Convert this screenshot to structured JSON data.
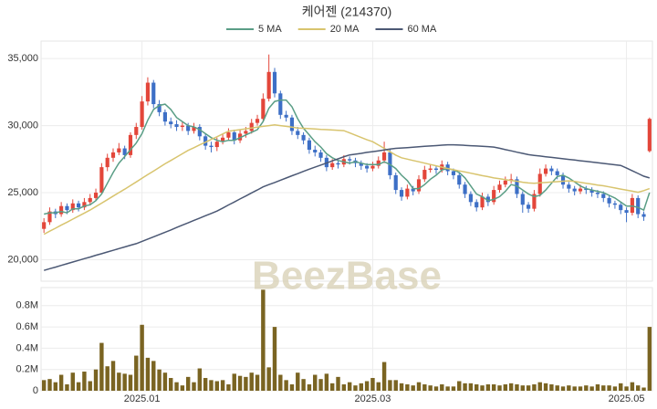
{
  "chart_data": {
    "type": "candlestick",
    "title": "케어젠 (214370)",
    "watermark": "BeezBase",
    "up_color": "#e3463a",
    "down_color": "#3d6fc6",
    "volume_color": "#7a6422",
    "grid": true,
    "categories": [
      null,
      null,
      null,
      null,
      null,
      null,
      null,
      null,
      null,
      null,
      null,
      null,
      null,
      null,
      null,
      null,
      null,
      "2025.01",
      null,
      null,
      null,
      null,
      null,
      null,
      null,
      null,
      null,
      null,
      null,
      null,
      null,
      null,
      null,
      null,
      null,
      null,
      null,
      null,
      null,
      null,
      null,
      null,
      null,
      null,
      null,
      null,
      null,
      null,
      null,
      null,
      null,
      null,
      null,
      null,
      null,
      null,
      null,
      "2025.03",
      null,
      null,
      null,
      null,
      null,
      null,
      null,
      null,
      null,
      null,
      null,
      null,
      null,
      null,
      null,
      null,
      null,
      null,
      null,
      null,
      null,
      null,
      null,
      null,
      null,
      null,
      null,
      null,
      null,
      null,
      null,
      null,
      null,
      null,
      null,
      null,
      null,
      null,
      null,
      null,
      null,
      null,
      null,
      "2025.05",
      null,
      null,
      null,
      null
    ],
    "open": [
      22300,
      22800,
      23600,
      23400,
      24000,
      23700,
      24200,
      23900,
      24300,
      24600,
      25000,
      26900,
      27600,
      28000,
      28300,
      27800,
      29300,
      29900,
      31800,
      33200,
      31600,
      31000,
      30300,
      30100,
      29900,
      30000,
      29600,
      29900,
      29200,
      28500,
      28400,
      28800,
      29100,
      29500,
      28900,
      29400,
      29600,
      30200,
      30500,
      32000,
      34000,
      32400,
      30800,
      30600,
      29600,
      29300,
      28900,
      28200,
      28000,
      27600,
      26900,
      27200,
      27100,
      27500,
      27400,
      27200,
      27000,
      26800,
      27000,
      27400,
      28000,
      26300,
      25200,
      24700,
      25300,
      25100,
      26000,
      26700,
      26800,
      26700,
      27100,
      26600,
      26300,
      25600,
      24900,
      24300,
      23900,
      24700,
      24300,
      25200,
      25600,
      25900,
      26000,
      24900,
      24100,
      23800,
      24900,
      26400,
      26800,
      26600,
      26300,
      25600,
      25300,
      25100,
      25300,
      25200,
      25000,
      24900,
      24600,
      24200,
      24100,
      23700,
      23500,
      24600,
      23400,
      28100
    ],
    "high": [
      23100,
      23900,
      23800,
      24300,
      24200,
      24500,
      24400,
      24600,
      24900,
      25300,
      27200,
      27900,
      28300,
      28700,
      28500,
      29500,
      30200,
      32200,
      33600,
      33400,
      31900,
      31200,
      30600,
      30400,
      30300,
      30200,
      30200,
      30100,
      29400,
      28800,
      29100,
      29400,
      29800,
      29700,
      29700,
      29900,
      30500,
      30800,
      32400,
      35300,
      34300,
      32600,
      31100,
      30800,
      29900,
      29500,
      29100,
      28500,
      28200,
      27800,
      27500,
      27400,
      27800,
      27700,
      27600,
      27400,
      27200,
      27300,
      27700,
      28800,
      28200,
      26500,
      25400,
      25600,
      25500,
      26300,
      27000,
      27100,
      27000,
      27400,
      27300,
      26800,
      26500,
      25800,
      25100,
      24500,
      25000,
      24900,
      25500,
      25900,
      26200,
      26400,
      26200,
      25100,
      24300,
      25200,
      26800,
      27100,
      27000,
      26800,
      26500,
      25800,
      25500,
      25600,
      25500,
      25400,
      25200,
      25100,
      24800,
      24400,
      24300,
      23900,
      24900,
      24800,
      23600,
      30600
    ],
    "low": [
      22000,
      22600,
      23100,
      23200,
      23400,
      23500,
      23600,
      23700,
      24100,
      24400,
      24900,
      26600,
      27300,
      27800,
      27500,
      27600,
      29000,
      29700,
      31500,
      31300,
      30700,
      30000,
      29800,
      29600,
      29600,
      29300,
      29400,
      28900,
      28200,
      28000,
      28100,
      28600,
      28900,
      28600,
      28700,
      29100,
      29400,
      30000,
      30300,
      31800,
      32100,
      30500,
      30300,
      29300,
      29000,
      28600,
      27900,
      27700,
      27300,
      26600,
      26700,
      26800,
      26900,
      27100,
      26900,
      26700,
      26500,
      26600,
      26800,
      27200,
      26000,
      24900,
      24400,
      24500,
      24800,
      24900,
      25800,
      26500,
      26400,
      26500,
      26300,
      26000,
      25300,
      24600,
      24000,
      23600,
      23700,
      24000,
      24100,
      25000,
      25400,
      25700,
      24600,
      23500,
      23500,
      23600,
      24700,
      26200,
      26300,
      26000,
      25300,
      25000,
      24800,
      24900,
      24900,
      24700,
      24600,
      24300,
      23900,
      23800,
      23400,
      22800,
      23300,
      23100,
      22900,
      28000
    ],
    "close": [
      22800,
      23600,
      23400,
      24000,
      23700,
      24200,
      23900,
      24300,
      24600,
      25000,
      26900,
      27600,
      28000,
      28300,
      27800,
      29300,
      29900,
      31800,
      33200,
      31600,
      31000,
      30300,
      30100,
      29900,
      30000,
      29600,
      29900,
      29200,
      28500,
      28400,
      28800,
      29100,
      29500,
      28900,
      29400,
      29600,
      30200,
      30500,
      32000,
      34000,
      32400,
      30800,
      30600,
      29600,
      29300,
      28900,
      28200,
      28000,
      27600,
      26900,
      27200,
      27100,
      27500,
      27400,
      27200,
      27000,
      26800,
      27000,
      27400,
      28000,
      26300,
      25200,
      24700,
      25300,
      25100,
      26000,
      26700,
      26800,
      26700,
      27100,
      26600,
      26300,
      25600,
      24900,
      24300,
      23900,
      24700,
      24300,
      25200,
      25600,
      25900,
      26000,
      24900,
      24100,
      23800,
      24900,
      26400,
      26800,
      26600,
      26300,
      25600,
      25300,
      25100,
      25300,
      25200,
      25000,
      24900,
      24600,
      24200,
      24100,
      23700,
      23500,
      24600,
      23400,
      23200,
      30500
    ],
    "volume": [
      100000,
      110000,
      80000,
      150000,
      60000,
      170000,
      80000,
      180000,
      90000,
      200000,
      450000,
      230000,
      280000,
      170000,
      160000,
      150000,
      330000,
      620000,
      310000,
      280000,
      200000,
      170000,
      120000,
      80000,
      50000,
      130000,
      80000,
      210000,
      120000,
      100000,
      90000,
      100000,
      60000,
      160000,
      140000,
      130000,
      170000,
      150000,
      950000,
      220000,
      600000,
      150000,
      100000,
      60000,
      170000,
      110000,
      60000,
      150000,
      110000,
      160000,
      70000,
      130000,
      60000,
      80000,
      50000,
      70000,
      90000,
      120000,
      80000,
      270000,
      100000,
      100000,
      70000,
      60000,
      50000,
      80000,
      60000,
      50000,
      40000,
      60000,
      40000,
      40000,
      90000,
      70000,
      70000,
      60000,
      50000,
      60000,
      60000,
      50000,
      60000,
      70000,
      60000,
      50000,
      50000,
      60000,
      80000,
      70000,
      60000,
      50000,
      40000,
      50000,
      40000,
      40000,
      50000,
      40000,
      60000,
      50000,
      50000,
      40000,
      70000,
      40000,
      80000,
      50000,
      30000,
      600000
    ],
    "series": [
      {
        "name": "5 MA",
        "color": "#5a9e86",
        "values": [
          23400,
          23500,
          23500,
          23600,
          23500,
          23800,
          23800,
          24000,
          24100,
          24400,
          24900,
          25700,
          26500,
          27200,
          27700,
          28200,
          28700,
          29400,
          30400,
          31200,
          31500,
          31600,
          31200,
          30600,
          30300,
          30000,
          29900,
          29700,
          29400,
          29100,
          28900,
          28800,
          28900,
          28900,
          29100,
          29300,
          29500,
          29700,
          30300,
          31300,
          31800,
          31900,
          31900,
          31400,
          30500,
          29800,
          29300,
          28800,
          28400,
          27900,
          27600,
          27400,
          27300,
          27200,
          27300,
          27200,
          27100,
          27100,
          27100,
          27300,
          27100,
          26800,
          26300,
          25900,
          25300,
          25300,
          25600,
          26000,
          26300,
          26700,
          26800,
          26700,
          26500,
          26100,
          25500,
          24900,
          24700,
          24400,
          24500,
          24700,
          25100,
          25600,
          25500,
          25200,
          24900,
          24700,
          24800,
          25200,
          25700,
          26200,
          26300,
          26100,
          25800,
          25500,
          25300,
          25200,
          25100,
          25000,
          24800,
          24600,
          24300,
          24000,
          24000,
          23900,
          23700,
          25000
        ]
      },
      {
        "name": "20 MA",
        "color": "#d8c46e",
        "values": [
          21900,
          22130,
          22350,
          22580,
          22800,
          23030,
          23250,
          23480,
          23700,
          23960,
          24220,
          24480,
          24740,
          25000,
          25260,
          25530,
          25800,
          26070,
          26340,
          26610,
          26880,
          27150,
          27400,
          27650,
          27900,
          28150,
          28350,
          28560,
          28760,
          28970,
          29170,
          29380,
          29580,
          29640,
          29700,
          29760,
          29820,
          29880,
          29940,
          30000,
          30060,
          30000,
          29940,
          29880,
          29820,
          29800,
          29770,
          29750,
          29720,
          29700,
          29670,
          29650,
          29620,
          29450,
          29280,
          29110,
          28940,
          28800,
          28550,
          28300,
          28050,
          27800,
          27600,
          27500,
          27400,
          27300,
          27200,
          27100,
          27000,
          26900,
          26800,
          26710,
          26620,
          26540,
          26450,
          26360,
          26270,
          26190,
          26100,
          26040,
          25970,
          25910,
          25850,
          25780,
          25720,
          25700,
          25730,
          25760,
          25790,
          25820,
          25850,
          25880,
          25830,
          25770,
          25700,
          25640,
          25570,
          25510,
          25430,
          25350,
          25270,
          25190,
          25110,
          25030,
          25150,
          25300
        ]
      },
      {
        "name": "60 MA",
        "color": "#4b5874",
        "values": [
          19200,
          19330,
          19450,
          19580,
          19700,
          19830,
          19950,
          20080,
          20200,
          20330,
          20450,
          20580,
          20700,
          20830,
          20950,
          21080,
          21200,
          21370,
          21540,
          21710,
          21880,
          22050,
          22220,
          22400,
          22580,
          22750,
          22930,
          23100,
          23280,
          23450,
          23630,
          23850,
          24080,
          24300,
          24530,
          24750,
          24980,
          25200,
          25430,
          25600,
          25760,
          25930,
          26090,
          26260,
          26420,
          26590,
          26750,
          26900,
          27060,
          27210,
          27370,
          27520,
          27680,
          27810,
          27870,
          27930,
          28000,
          28060,
          28120,
          28180,
          28250,
          28300,
          28330,
          28360,
          28390,
          28420,
          28450,
          28480,
          28510,
          28540,
          28570,
          28570,
          28550,
          28530,
          28500,
          28480,
          28450,
          28430,
          28400,
          28310,
          28210,
          28120,
          28020,
          27930,
          27830,
          27780,
          27730,
          27680,
          27630,
          27580,
          27530,
          27480,
          27430,
          27380,
          27330,
          27280,
          27230,
          27180,
          27130,
          27080,
          27030,
          26830,
          26630,
          26430,
          26230,
          26100
        ]
      }
    ],
    "ylim": [
      18400,
      36300
    ],
    "yticks": [
      {
        "value": 20000,
        "label": "20,000"
      },
      {
        "value": 25000,
        "label": "25,000"
      },
      {
        "value": 30000,
        "label": "30,000"
      },
      {
        "value": 35000,
        "label": "35,000"
      }
    ],
    "volume_ylim": [
      0,
      970000
    ],
    "volume_yticks": [
      0,
      {
        "value": 200000,
        "label": "0.2M"
      },
      {
        "value": 400000,
        "label": "0.4M"
      },
      {
        "value": 600000,
        "label": "0.6M"
      },
      {
        "value": 800000,
        "label": "0.8M"
      }
    ]
  }
}
